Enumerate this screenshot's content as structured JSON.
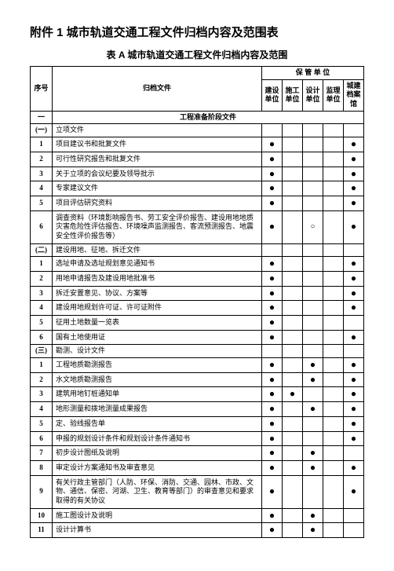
{
  "title": "附件 1   城市轨道交通工程文件归档内容及范围表",
  "subtitle": "表 A 城市轨道交通工程文件归档内容及范围",
  "headers": {
    "seq": "序号",
    "file": "归档文件",
    "custodian": "保 管 单 位",
    "units": [
      "建设单位",
      "施工单位",
      "设计单位",
      "监理单位",
      "城建档案馆"
    ]
  },
  "section": "工程准备阶段文件",
  "filled": "●",
  "hollow": "○",
  "rows": [
    {
      "seq": "一",
      "name": "",
      "type": "section"
    },
    {
      "seq": "(一)",
      "name": "立项文件",
      "marks": [
        "",
        "",
        "",
        "",
        ""
      ]
    },
    {
      "seq": "1",
      "name": "项目建议书和批复文件",
      "marks": [
        "●",
        "",
        "",
        "",
        "●"
      ]
    },
    {
      "seq": "2",
      "name": "可行性研究报告和批复文件",
      "marks": [
        "●",
        "",
        "",
        "",
        "●"
      ]
    },
    {
      "seq": "3",
      "name": "关于立项的会议纪要及领导批示",
      "marks": [
        "●",
        "",
        "",
        "",
        "●"
      ]
    },
    {
      "seq": "4",
      "name": "专家建议文件",
      "marks": [
        "●",
        "",
        "",
        "",
        "●"
      ]
    },
    {
      "seq": "5",
      "name": "项目评估研究资料",
      "marks": [
        "●",
        "",
        "",
        "",
        "●"
      ]
    },
    {
      "seq": "6",
      "name": "调查资料（环境影响报告书、劳工安全评价报告、建设用地地质灾害危险性评估报告、环境噪声监测报告、客流预测报告、地震安全性评价报告等）",
      "marks": [
        "●",
        "",
        "○",
        "",
        "●"
      ],
      "cls": "tall"
    },
    {
      "seq": "(二)",
      "name": "建设用地、征地、拆迁文件",
      "marks": [
        "",
        "",
        "",
        "",
        ""
      ]
    },
    {
      "seq": "1",
      "name": "选址申请及选址规划意见通知书",
      "marks": [
        "●",
        "",
        "",
        "",
        "●"
      ]
    },
    {
      "seq": "2",
      "name": "用地申请报告及建设用地批准书",
      "marks": [
        "●",
        "",
        "",
        "",
        "●"
      ]
    },
    {
      "seq": "3",
      "name": "拆迁安置意见、协议、方案等",
      "marks": [
        "●",
        "",
        "",
        "",
        "●"
      ]
    },
    {
      "seq": "4",
      "name": "建设用地规划许可证、许可证附件",
      "marks": [
        "●",
        "",
        "",
        "",
        "●"
      ]
    },
    {
      "seq": "5",
      "name": "征用土地数量一览表",
      "marks": [
        "●",
        "",
        "",
        "",
        ""
      ]
    },
    {
      "seq": "6",
      "name": "国有土地使用证",
      "marks": [
        "●",
        "",
        "",
        "",
        "●"
      ]
    },
    {
      "seq": "(三)",
      "name": "勘测、设计文件",
      "marks": [
        "",
        "",
        "",
        "",
        ""
      ]
    },
    {
      "seq": "1",
      "name": "工程地质勘测报告",
      "marks": [
        "●",
        "",
        "●",
        "",
        "●"
      ]
    },
    {
      "seq": "2",
      "name": "水文地质勘测报告",
      "marks": [
        "●",
        "",
        "●",
        "",
        "●"
      ]
    },
    {
      "seq": "3",
      "name": "建筑用地钉桩通知单",
      "marks": [
        "●",
        "●",
        "",
        "",
        "●"
      ]
    },
    {
      "seq": "4",
      "name": "地形测量和拨地测量成果报告",
      "marks": [
        "●",
        "",
        "●",
        "",
        "●"
      ]
    },
    {
      "seq": "5",
      "name": "定、验线报告单",
      "marks": [
        "●",
        "",
        "",
        "",
        "●"
      ]
    },
    {
      "seq": "6",
      "name": "申报的规划设计条件和规划设计条件通知书",
      "marks": [
        "●",
        "",
        "",
        "",
        "●"
      ]
    },
    {
      "seq": "7",
      "name": "初步设计图纸及说明",
      "marks": [
        "●",
        "",
        "●",
        "",
        ""
      ]
    },
    {
      "seq": "8",
      "name": "审定设计方案通知书及审查意见",
      "marks": [
        "●",
        "",
        "●",
        "",
        "●"
      ]
    },
    {
      "seq": "9",
      "name": "有关行政主管部门（人防、环保、消防、交通、园林、市政、文物、通信、保密、河湖、卫生、教育等部门）的审查意见和要求取得的有关协议",
      "marks": [
        "●",
        "",
        "",
        "",
        "●"
      ],
      "cls": "tall"
    },
    {
      "seq": "10",
      "name": "施工图设计及说明",
      "marks": [
        "●",
        "",
        "●",
        "",
        ""
      ]
    },
    {
      "seq": "11",
      "name": "设计计算书",
      "marks": [
        "●",
        "",
        "●",
        "",
        ""
      ]
    }
  ]
}
